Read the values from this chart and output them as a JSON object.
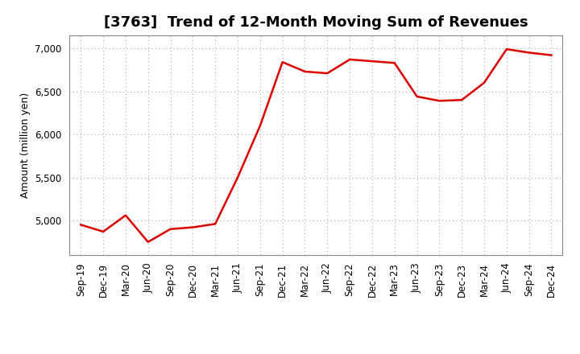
{
  "title": "[3763]  Trend of 12-Month Moving Sum of Revenues",
  "ylabel": "Amount (million yen)",
  "line_color": "#DD0000",
  "background_color": "#FFFFFF",
  "plot_bg_color": "#FFFFFF",
  "grid_color": "#AAAAAA",
  "labels": [
    "Sep-19",
    "Dec-19",
    "Mar-20",
    "Jun-20",
    "Sep-20",
    "Dec-20",
    "Mar-21",
    "Jun-21",
    "Sep-21",
    "Dec-21",
    "Mar-22",
    "Jun-22",
    "Sep-22",
    "Dec-22",
    "Mar-23",
    "Jun-23",
    "Sep-23",
    "Dec-23",
    "Mar-24",
    "Jun-24",
    "Sep-24",
    "Dec-24"
  ],
  "values": [
    4950,
    4870,
    5060,
    4750,
    4900,
    4920,
    4960,
    5500,
    6100,
    6840,
    6730,
    6710,
    6870,
    6850,
    6830,
    6440,
    6390,
    6400,
    6600,
    6990,
    6950,
    6920
  ],
  "ylim": [
    4600,
    7150
  ],
  "yticks": [
    5000,
    5500,
    6000,
    6500,
    7000
  ],
  "title_fontsize": 13,
  "axis_fontsize": 9,
  "tick_fontsize": 8.5,
  "linewidth": 1.8
}
